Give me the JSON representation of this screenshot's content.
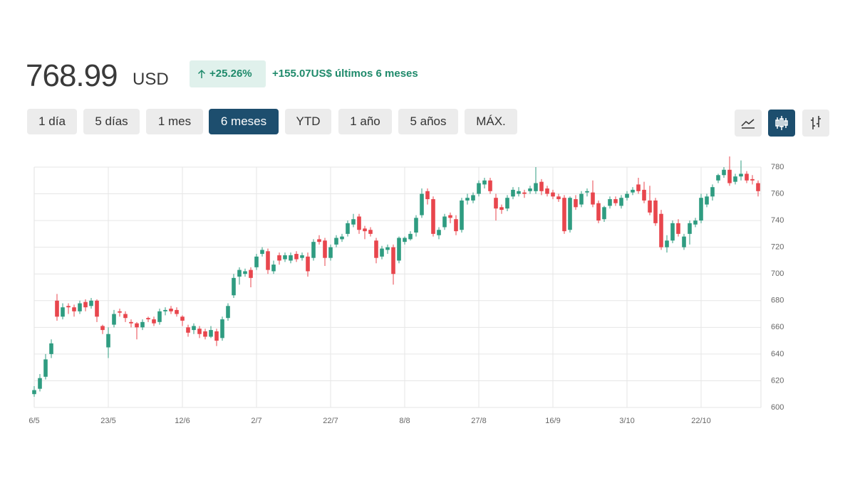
{
  "header": {
    "price": 768.99,
    "currency": "USD",
    "change_pct": "+25.26%",
    "change_abs": "+155.07",
    "change_unit": "US$",
    "change_period": "últimos 6 meses"
  },
  "ranges": {
    "buttons": [
      "1 día",
      "5 días",
      "1 mes",
      "6 meses",
      "YTD",
      "1 año",
      "5 años",
      "MÁX."
    ],
    "selected": 3
  },
  "chart_data": {
    "type": "candlestick",
    "up_color": "#2f9c81",
    "down_color": "#e8464d",
    "grid": true,
    "y_axis_side": "right",
    "categories": [
      "6/5",
      null,
      null,
      null,
      null,
      null,
      null,
      null,
      null,
      null,
      null,
      null,
      null,
      "23/5",
      null,
      null,
      null,
      null,
      null,
      null,
      null,
      null,
      null,
      null,
      null,
      null,
      "12/6",
      null,
      null,
      null,
      null,
      null,
      null,
      null,
      null,
      null,
      null,
      null,
      null,
      "2/7",
      null,
      null,
      null,
      null,
      null,
      null,
      null,
      null,
      null,
      null,
      null,
      null,
      "22/7",
      null,
      null,
      null,
      null,
      null,
      null,
      null,
      null,
      null,
      null,
      null,
      null,
      "8/8",
      null,
      null,
      null,
      null,
      null,
      null,
      null,
      null,
      null,
      null,
      null,
      null,
      "27/8",
      null,
      null,
      null,
      null,
      null,
      null,
      null,
      null,
      null,
      null,
      null,
      null,
      "16/9",
      null,
      null,
      null,
      null,
      null,
      null,
      null,
      null,
      null,
      null,
      null,
      null,
      "3/10",
      null,
      null,
      null,
      null,
      null,
      null,
      null,
      null,
      null,
      null,
      null,
      null,
      "22/10",
      null,
      null,
      null,
      null,
      null,
      null,
      null,
      null,
      null,
      null
    ],
    "open": [
      610,
      614,
      623,
      640,
      680,
      668,
      676,
      675,
      672,
      679,
      676,
      680,
      661,
      645,
      662,
      672,
      670,
      664,
      663,
      660,
      667,
      666,
      664,
      672,
      674,
      673,
      668,
      660,
      658,
      659,
      657,
      653,
      657,
      652,
      667,
      684,
      698,
      700,
      703,
      705,
      715,
      717,
      702,
      714,
      711,
      710,
      715,
      712,
      713,
      712,
      726,
      725,
      712,
      722,
      726,
      730,
      737,
      743,
      734,
      733,
      725,
      713,
      718,
      720,
      710,
      724,
      726,
      731,
      744,
      762,
      756,
      729,
      735,
      744,
      741,
      733,
      755,
      755,
      760,
      767,
      770,
      757,
      750,
      749,
      758,
      760,
      761,
      762,
      762,
      769,
      764,
      761,
      758,
      757,
      733,
      756,
      752,
      761,
      761,
      753,
      741,
      751,
      756,
      751,
      757,
      761,
      767,
      763,
      755,
      755,
      745,
      720,
      725,
      738,
      720,
      730,
      737,
      740,
      752,
      758,
      770,
      774,
      778,
      769,
      773,
      775,
      771,
      768
    ],
    "high": [
      616,
      625,
      640,
      651,
      685,
      678,
      678,
      677,
      680,
      681,
      682,
      681,
      662,
      660,
      673,
      674,
      672,
      666,
      664,
      666,
      668,
      668,
      674,
      675,
      676,
      675,
      669,
      662,
      663,
      661,
      659,
      661,
      659,
      668,
      678,
      700,
      705,
      704,
      705,
      715,
      720,
      719,
      710,
      716,
      716,
      716,
      717,
      716,
      716,
      726,
      729,
      727,
      722,
      729,
      730,
      740,
      745,
      745,
      736,
      735,
      727,
      721,
      722,
      722,
      728,
      728,
      732,
      744,
      764,
      764,
      758,
      735,
      745,
      746,
      744,
      757,
      760,
      761,
      770,
      772,
      772,
      760,
      752,
      759,
      765,
      765,
      763,
      766,
      780,
      771,
      766,
      763,
      760,
      759,
      758,
      759,
      762,
      764,
      770,
      755,
      751,
      758,
      758,
      759,
      762,
      765,
      772,
      769,
      766,
      757,
      748,
      729,
      740,
      741,
      730,
      740,
      742,
      760,
      760,
      767,
      775,
      780,
      788,
      775,
      785,
      777,
      774,
      770
    ],
    "low": [
      608,
      612,
      621,
      637,
      665,
      666,
      670,
      668,
      670,
      672,
      674,
      664,
      655,
      637,
      660,
      668,
      664,
      660,
      651,
      658,
      664,
      661,
      662,
      669,
      670,
      668,
      661,
      653,
      655,
      652,
      651,
      652,
      646,
      650,
      665,
      682,
      692,
      698,
      690,
      703,
      713,
      700,
      700,
      707,
      709,
      708,
      709,
      710,
      698,
      710,
      722,
      706,
      710,
      720,
      724,
      728,
      735,
      730,
      726,
      728,
      708,
      711,
      715,
      692,
      708,
      722,
      725,
      728,
      742,
      752,
      728,
      726,
      733,
      738,
      729,
      731,
      752,
      753,
      758,
      764,
      760,
      740,
      745,
      747,
      756,
      758,
      757,
      760,
      760,
      759,
      758,
      756,
      754,
      730,
      731,
      748,
      750,
      758,
      750,
      738,
      739,
      749,
      751,
      749,
      755,
      759,
      760,
      753,
      744,
      736,
      718,
      716,
      723,
      728,
      718,
      722,
      735,
      738,
      750,
      755,
      768,
      772,
      766,
      767,
      770,
      768,
      767,
      758
    ],
    "close": [
      613,
      622,
      636,
      648,
      668,
      675,
      675,
      672,
      678,
      675,
      680,
      668,
      658,
      655,
      670,
      671,
      667,
      663,
      660,
      664,
      666,
      663,
      672,
      673,
      672,
      670,
      665,
      656,
      661,
      655,
      653,
      658,
      650,
      666,
      676,
      697,
      703,
      702,
      697,
      713,
      718,
      703,
      707,
      710,
      714,
      714,
      711,
      714,
      702,
      724,
      724,
      712,
      720,
      727,
      728,
      738,
      741,
      733,
      732,
      730,
      712,
      719,
      720,
      700,
      727,
      727,
      730,
      742,
      760,
      756,
      730,
      733,
      743,
      742,
      732,
      755,
      757,
      759,
      768,
      770,
      762,
      749,
      748,
      757,
      763,
      762,
      760,
      764,
      768,
      762,
      760,
      758,
      756,
      732,
      757,
      750,
      760,
      762,
      752,
      740,
      750,
      756,
      753,
      757,
      760,
      763,
      762,
      755,
      746,
      738,
      720,
      725,
      738,
      730,
      728,
      738,
      740,
      757,
      758,
      765,
      774,
      778,
      768,
      773,
      775,
      770,
      770,
      762
    ],
    "ylim": [
      600,
      780
    ],
    "yticks": [
      600,
      620,
      640,
      660,
      680,
      700,
      720,
      740,
      760,
      780
    ]
  }
}
